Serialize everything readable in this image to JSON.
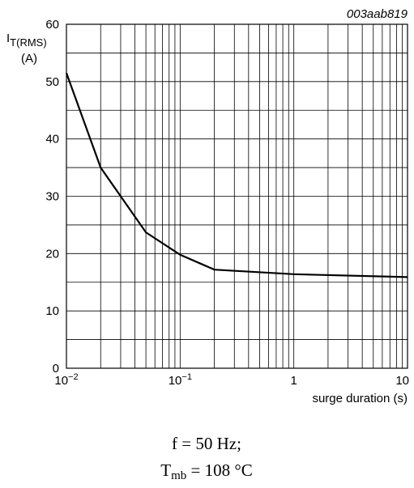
{
  "chart_data": {
    "type": "line",
    "annotation": "003aab819",
    "ylabel": {
      "text": "I",
      "subscript": "T(RMS)",
      "unit": "(A)"
    },
    "xlabel": "surge duration (s)",
    "x": [
      0.01,
      0.02,
      0.05,
      0.1,
      0.2,
      1,
      10
    ],
    "series": [
      {
        "color": "#000000",
        "values": [
          51.5,
          35,
          23.7,
          19.8,
          17.2,
          16.4,
          15.9
        ]
      }
    ],
    "xlog": true,
    "xlim": [
      0.01,
      10
    ],
    "xticks": [
      {
        "value": 0.01,
        "label": "10",
        "exponent": "−2"
      },
      {
        "value": 0.1,
        "label": "10",
        "exponent": "−1"
      },
      1,
      10
    ],
    "xgrid": [
      0.02,
      0.03,
      0.04,
      0.05,
      0.06,
      0.07,
      0.08,
      0.09,
      0.2,
      0.3,
      0.4,
      0.5,
      0.6,
      0.7,
      0.8,
      0.9,
      2,
      3,
      4,
      5,
      6,
      7,
      8,
      9
    ],
    "ylim": [
      0,
      60
    ],
    "yticks": [
      0,
      10,
      20,
      30,
      40,
      50,
      60
    ],
    "ygrid": [
      5,
      15,
      25,
      35,
      45,
      55
    ],
    "grid": true,
    "caption": {
      "line1": "f = 50 Hz;",
      "symbol": "T",
      "subscript": "mb",
      "rest": " = 108 °C"
    }
  }
}
